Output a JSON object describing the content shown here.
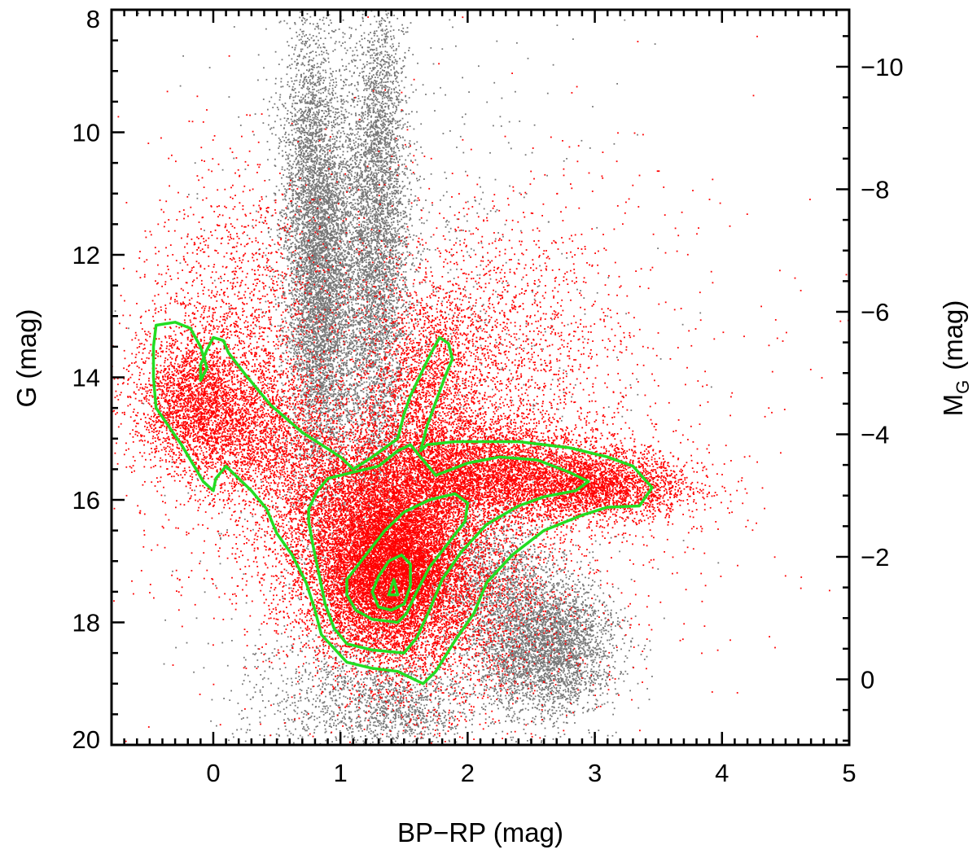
{
  "chart_data": {
    "type": "scatter",
    "xlabel": "BP−RP (mag)",
    "ylabel": "G (mag)",
    "y2label_main": "M",
    "y2label_sub": "G",
    "y2label_unit": "(mag)",
    "xlim": [
      -0.8,
      5.0
    ],
    "ylim": [
      20.0,
      8.0
    ],
    "y2lim": [
      -1.07,
      10.93
    ],
    "x_ticks": [
      0,
      1,
      2,
      3,
      4,
      5
    ],
    "x_tick_labels": [
      "0",
      "1",
      "2",
      "3",
      "4",
      "5"
    ],
    "y_ticks": [
      8,
      10,
      12,
      14,
      16,
      18,
      20
    ],
    "y_tick_labels": [
      "8",
      "10",
      "12",
      "14",
      "16",
      "18",
      "20"
    ],
    "y2_ticks": [
      0,
      2,
      4,
      6,
      8,
      10
    ],
    "y2_tick_labels": [
      "0",
      "−2",
      "−4",
      "−6",
      "−8",
      "−10"
    ],
    "grid": false,
    "colors": {
      "background_stars": "#777777",
      "selected_stars": "#ff0000",
      "contours": "#22dd22"
    },
    "series": [
      {
        "kind": "scatter-background",
        "color": "#777777",
        "clusters": [
          {
            "cx": 0.85,
            "cy": 12.6,
            "sx": 0.14,
            "sy": 1.6,
            "n": 5500
          },
          {
            "cx": 0.75,
            "cy": 10.3,
            "sx": 0.12,
            "sy": 1.2,
            "n": 1400
          },
          {
            "cx": 1.28,
            "cy": 12.4,
            "sx": 0.13,
            "sy": 1.7,
            "n": 3800
          },
          {
            "cx": 1.32,
            "cy": 9.6,
            "sx": 0.1,
            "sy": 1.0,
            "n": 900
          },
          {
            "cx": 2.6,
            "cy": 18.4,
            "sx": 0.28,
            "sy": 0.55,
            "n": 3800
          },
          {
            "cx": 2.2,
            "cy": 17.3,
            "sx": 0.25,
            "sy": 0.6,
            "n": 1200
          },
          {
            "cx": 1.5,
            "cy": 19.4,
            "sx": 0.25,
            "sy": 0.4,
            "n": 900
          },
          {
            "cx": 0.9,
            "cy": 19.2,
            "sx": 0.35,
            "sy": 0.5,
            "n": 700
          },
          {
            "cx": 1.5,
            "cy": 14.5,
            "sx": 0.8,
            "sy": 3.5,
            "n": 1500
          }
        ]
      },
      {
        "kind": "scatter-selected",
        "color": "#ff0000",
        "clusters": [
          {
            "cx": 1.4,
            "cy": 17.2,
            "sx": 0.32,
            "sy": 0.7,
            "n": 9000
          },
          {
            "cx": 1.25,
            "cy": 16.2,
            "sx": 0.45,
            "sy": 0.75,
            "n": 4500
          },
          {
            "cx": 2.2,
            "cy": 15.6,
            "sx": 0.6,
            "sy": 0.45,
            "n": 5500
          },
          {
            "cx": 3.1,
            "cy": 15.8,
            "sx": 0.35,
            "sy": 0.25,
            "n": 1800
          },
          {
            "cx": -0.15,
            "cy": 14.4,
            "sx": 0.25,
            "sy": 0.6,
            "n": 2600
          },
          {
            "cx": 0.35,
            "cy": 14.9,
            "sx": 0.3,
            "sy": 0.6,
            "n": 1800
          },
          {
            "cx": 1.7,
            "cy": 14.2,
            "sx": 0.25,
            "sy": 0.9,
            "n": 1800
          },
          {
            "cx": 0.2,
            "cy": 12.6,
            "sx": 0.35,
            "sy": 1.0,
            "n": 1000
          },
          {
            "cx": 2.3,
            "cy": 13.5,
            "sx": 0.4,
            "sy": 1.0,
            "n": 1000
          },
          {
            "cx": 1.8,
            "cy": 17.8,
            "sx": 0.6,
            "sy": 1.0,
            "n": 2000
          },
          {
            "cx": 1.6,
            "cy": 14.8,
            "sx": 1.2,
            "sy": 2.2,
            "n": 2500
          }
        ]
      }
    ],
    "contours": [
      {
        "level": "outer",
        "points": [
          [
            -0.45,
            13.15
          ],
          [
            -0.3,
            13.1
          ],
          [
            -0.18,
            13.2
          ],
          [
            -0.1,
            13.5
          ],
          [
            -0.05,
            13.85
          ],
          [
            -0.1,
            14.05
          ],
          [
            -0.1,
            13.8
          ],
          [
            -0.05,
            13.55
          ],
          [
            0.0,
            13.35
          ],
          [
            0.08,
            13.4
          ],
          [
            0.12,
            13.6
          ],
          [
            0.25,
            13.95
          ],
          [
            0.45,
            14.45
          ],
          [
            0.7,
            14.9
          ],
          [
            1.0,
            15.3
          ],
          [
            1.1,
            15.5
          ],
          [
            1.25,
            15.3
          ],
          [
            1.45,
            15.0
          ],
          [
            1.5,
            14.6
          ],
          [
            1.55,
            14.3
          ],
          [
            1.62,
            14.0
          ],
          [
            1.7,
            13.65
          ],
          [
            1.78,
            13.35
          ],
          [
            1.85,
            13.45
          ],
          [
            1.88,
            13.7
          ],
          [
            1.82,
            14.0
          ],
          [
            1.75,
            14.4
          ],
          [
            1.68,
            14.8
          ],
          [
            1.63,
            15.2
          ],
          [
            1.68,
            15.1
          ],
          [
            1.9,
            15.05
          ],
          [
            2.4,
            15.05
          ],
          [
            2.8,
            15.15
          ],
          [
            3.1,
            15.3
          ],
          [
            3.3,
            15.45
          ],
          [
            3.45,
            15.8
          ],
          [
            3.35,
            16.1
          ],
          [
            3.1,
            16.12
          ],
          [
            2.9,
            16.25
          ],
          [
            2.6,
            16.5
          ],
          [
            2.35,
            16.9
          ],
          [
            2.15,
            17.35
          ],
          [
            2.05,
            17.85
          ],
          [
            1.9,
            18.3
          ],
          [
            1.75,
            18.8
          ],
          [
            1.65,
            19.0
          ],
          [
            1.45,
            18.8
          ],
          [
            1.25,
            18.75
          ],
          [
            1.05,
            18.65
          ],
          [
            0.85,
            18.2
          ],
          [
            0.8,
            17.8
          ],
          [
            0.73,
            17.35
          ],
          [
            0.62,
            16.9
          ],
          [
            0.5,
            16.55
          ],
          [
            0.42,
            16.15
          ],
          [
            0.3,
            15.85
          ],
          [
            0.2,
            15.65
          ],
          [
            0.1,
            15.45
          ],
          [
            0.02,
            15.65
          ],
          [
            0.0,
            15.85
          ],
          [
            -0.08,
            15.7
          ],
          [
            -0.15,
            15.45
          ],
          [
            -0.25,
            15.1
          ],
          [
            -0.35,
            14.8
          ],
          [
            -0.45,
            14.5
          ],
          [
            -0.47,
            14.0
          ],
          [
            -0.47,
            13.5
          ],
          [
            -0.45,
            13.15
          ]
        ]
      },
      {
        "level": "middle",
        "points": [
          [
            0.75,
            16.15
          ],
          [
            0.82,
            15.85
          ],
          [
            0.9,
            15.65
          ],
          [
            1.1,
            15.55
          ],
          [
            1.3,
            15.45
          ],
          [
            1.45,
            15.2
          ],
          [
            1.55,
            15.1
          ],
          [
            1.75,
            15.6
          ],
          [
            2.0,
            15.4
          ],
          [
            2.25,
            15.3
          ],
          [
            2.55,
            15.35
          ],
          [
            2.8,
            15.55
          ],
          [
            2.95,
            15.7
          ],
          [
            2.85,
            15.85
          ],
          [
            2.6,
            15.95
          ],
          [
            2.4,
            16.1
          ],
          [
            2.15,
            16.4
          ],
          [
            1.95,
            16.85
          ],
          [
            1.8,
            17.3
          ],
          [
            1.7,
            17.8
          ],
          [
            1.6,
            18.25
          ],
          [
            1.5,
            18.5
          ],
          [
            1.25,
            18.45
          ],
          [
            1.05,
            18.35
          ],
          [
            0.95,
            18.1
          ],
          [
            0.88,
            17.7
          ],
          [
            0.83,
            17.2
          ],
          [
            0.78,
            16.7
          ],
          [
            0.75,
            16.35
          ],
          [
            0.75,
            16.15
          ]
        ]
      },
      {
        "level": "inner",
        "points": [
          [
            1.05,
            17.3
          ],
          [
            1.2,
            16.9
          ],
          [
            1.35,
            16.5
          ],
          [
            1.5,
            16.2
          ],
          [
            1.7,
            16.0
          ],
          [
            1.9,
            15.9
          ],
          [
            2.0,
            16.05
          ],
          [
            1.98,
            16.35
          ],
          [
            1.85,
            16.7
          ],
          [
            1.7,
            17.1
          ],
          [
            1.6,
            17.5
          ],
          [
            1.52,
            17.85
          ],
          [
            1.45,
            18.0
          ],
          [
            1.25,
            17.95
          ],
          [
            1.12,
            17.8
          ],
          [
            1.05,
            17.55
          ],
          [
            1.05,
            17.3
          ]
        ]
      },
      {
        "level": "core",
        "points": [
          [
            1.25,
            17.5
          ],
          [
            1.3,
            17.25
          ],
          [
            1.38,
            17.0
          ],
          [
            1.48,
            16.9
          ],
          [
            1.55,
            17.05
          ],
          [
            1.55,
            17.4
          ],
          [
            1.5,
            17.7
          ],
          [
            1.4,
            17.8
          ],
          [
            1.3,
            17.75
          ],
          [
            1.25,
            17.5
          ]
        ]
      },
      {
        "level": "peak",
        "points": [
          [
            1.38,
            17.55
          ],
          [
            1.42,
            17.3
          ],
          [
            1.45,
            17.55
          ],
          [
            1.38,
            17.55
          ]
        ]
      }
    ]
  }
}
